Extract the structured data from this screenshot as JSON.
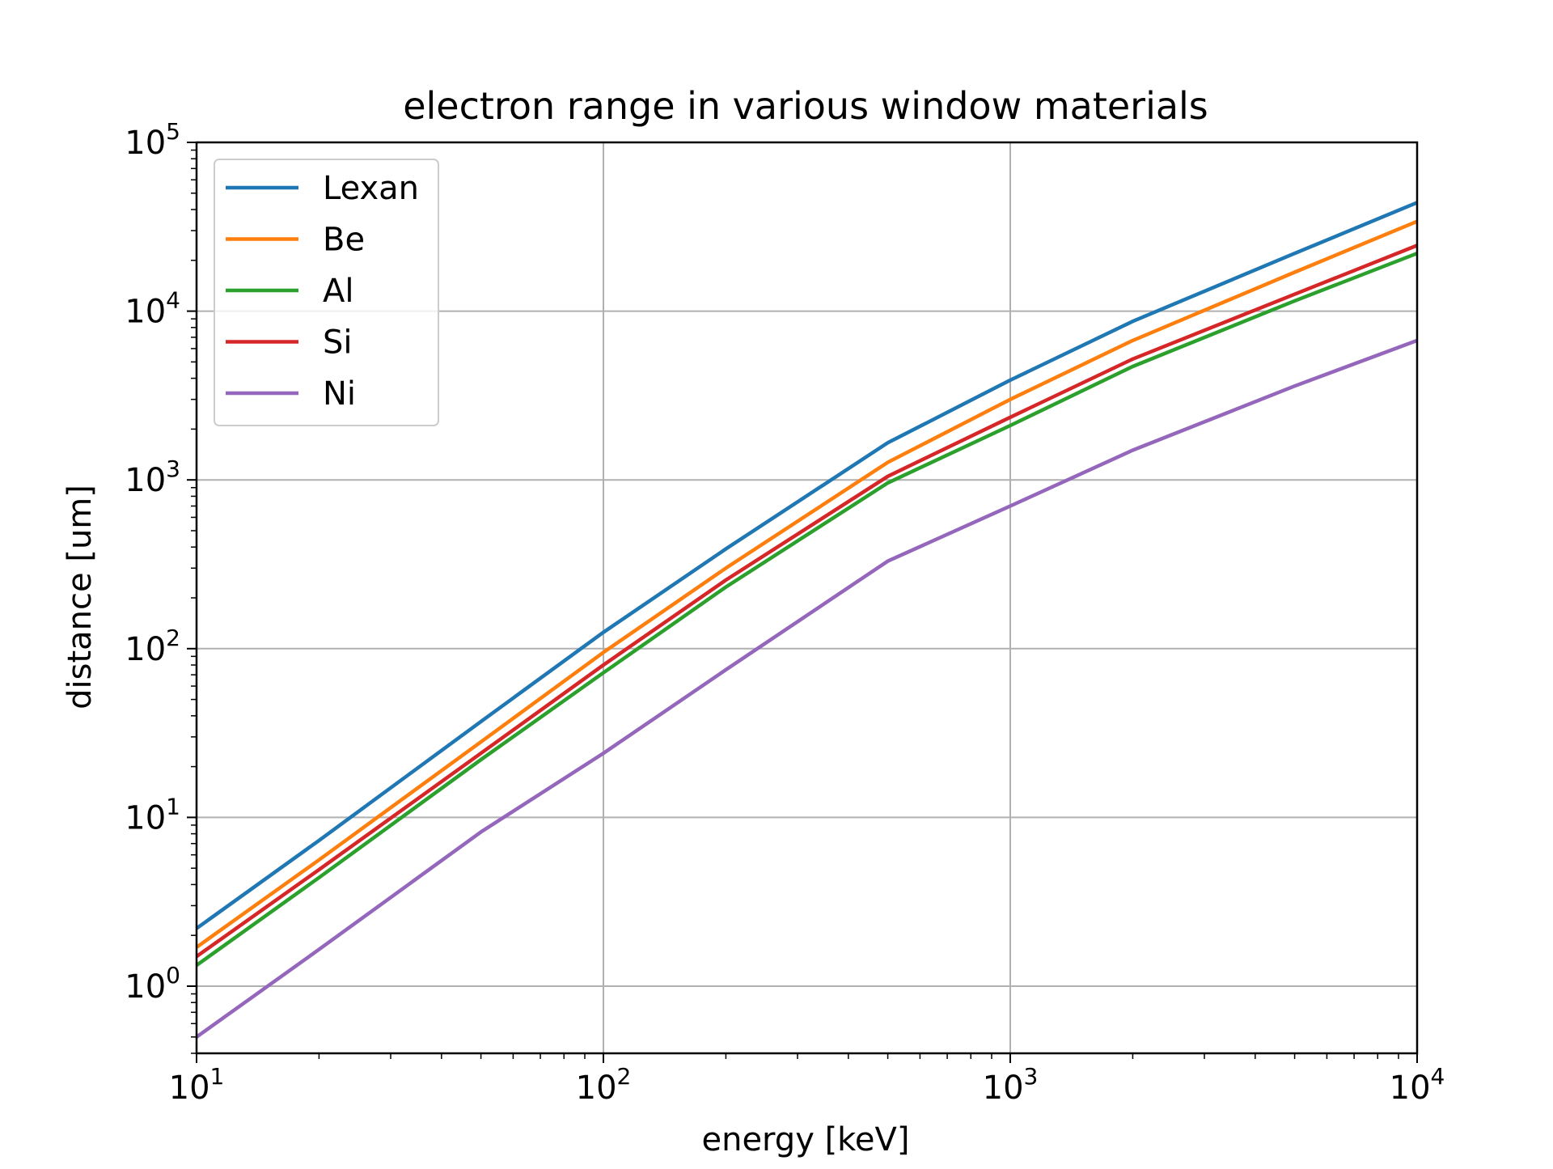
{
  "chart_data": {
    "type": "line",
    "title": "electron range in various window materials",
    "xlabel": "energy [keV]",
    "ylabel": "distance [um]",
    "xscale": "log",
    "yscale": "log",
    "xlim": [
      10,
      10000
    ],
    "ylim": [
      0.4,
      100000
    ],
    "grid": true,
    "legend_position": "top-left",
    "x_ticks": [
      {
        "value": 10,
        "base": "10",
        "exp": "1"
      },
      {
        "value": 100,
        "base": "10",
        "exp": "2"
      },
      {
        "value": 1000,
        "base": "10",
        "exp": "3"
      },
      {
        "value": 10000,
        "base": "10",
        "exp": "4"
      }
    ],
    "y_ticks": [
      {
        "value": 1,
        "base": "10",
        "exp": "0"
      },
      {
        "value": 10,
        "base": "10",
        "exp": "1"
      },
      {
        "value": 100,
        "base": "10",
        "exp": "2"
      },
      {
        "value": 1000,
        "base": "10",
        "exp": "3"
      },
      {
        "value": 10000,
        "base": "10",
        "exp": "4"
      },
      {
        "value": 100000,
        "base": "10",
        "exp": "5"
      }
    ],
    "x": [
      10,
      20,
      50,
      100,
      200,
      500,
      1000,
      2000,
      5000,
      10000
    ],
    "series": [
      {
        "name": "Lexan",
        "color": "#1f77b4",
        "values": [
          2.2,
          7.3,
          37,
          125,
          390,
          1660,
          3900,
          8700,
          22000,
          44000
        ]
      },
      {
        "name": "Be",
        "color": "#ff7f0e",
        "values": [
          1.7,
          5.6,
          28,
          95,
          300,
          1270,
          3000,
          6700,
          17000,
          34000
        ]
      },
      {
        "name": "Al",
        "color": "#2ca02c",
        "values": [
          1.33,
          4.4,
          22,
          72,
          232,
          960,
          2100,
          4700,
          11500,
          22000
        ]
      },
      {
        "name": "Si",
        "color": "#d62728",
        "values": [
          1.5,
          4.9,
          24,
          80,
          255,
          1050,
          2350,
          5200,
          12600,
          24500
        ]
      },
      {
        "name": "Ni",
        "color": "#9467bd",
        "values": [
          0.5,
          1.65,
          8.2,
          24,
          75,
          330,
          700,
          1500,
          3600,
          6700
        ]
      }
    ]
  }
}
